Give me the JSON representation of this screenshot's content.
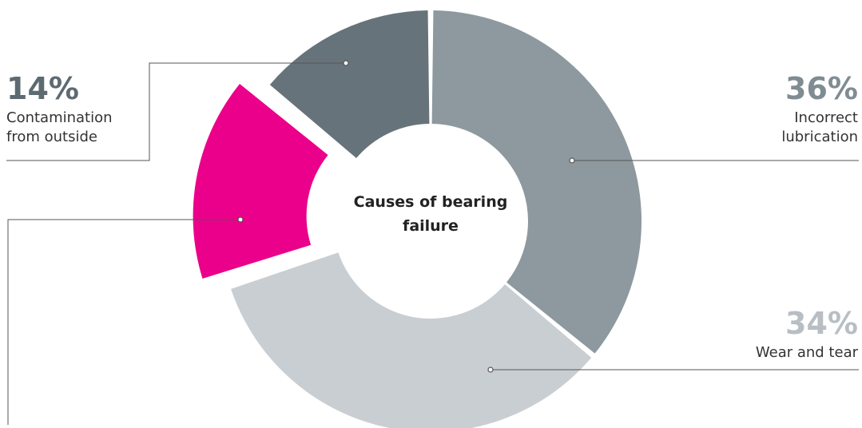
{
  "chart_data": {
    "type": "pie",
    "title": "Causes of bearing failure",
    "unit": "%",
    "slices": [
      {
        "label": "Incorrect lubrication",
        "value": 36,
        "value_label": "36%",
        "label_lines": [
          "Incorrect",
          "lubrication"
        ],
        "color": "#8d999f"
      },
      {
        "label": "Wear and tear",
        "value": 34,
        "value_label": "34%",
        "label_lines": [
          "Wear and tear"
        ],
        "color": "#c9ced3"
      },
      {
        "label": "",
        "value": 16,
        "value_label": "",
        "label_lines": [],
        "color": "#eb008b",
        "exploded": true
      },
      {
        "label": "Contamination from outside",
        "value": 14,
        "value_label": "14%",
        "label_lines": [
          "Contamination",
          "from outside"
        ],
        "color": "#67737a"
      }
    ]
  },
  "colors": {
    "pct_incorrect": "#7f8c92",
    "pct_wear": "#b8bec3",
    "pct_contamination": "#5d6a71",
    "leader": "#555555"
  }
}
